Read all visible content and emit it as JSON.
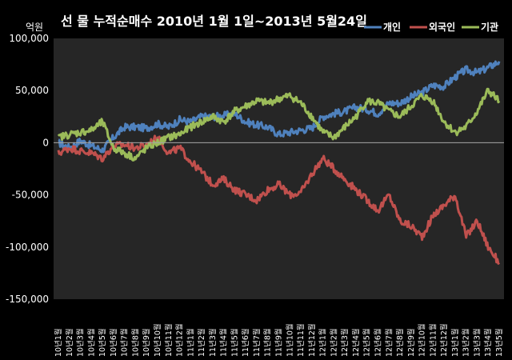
{
  "chart_data": {
    "type": "line",
    "title": "선  물  누적순매수  2010년 1월 1일~2013년 5월24일",
    "unit_label": "억원",
    "ylim": [
      -150000,
      100000
    ],
    "ytick_values": [
      -150000,
      -100000,
      -50000,
      0,
      50000,
      100000
    ],
    "ytick_labels": [
      "-150,000",
      "-100,000",
      "-50,000",
      "0",
      "50,000",
      "100,000"
    ],
    "legend_position": "top-right",
    "grid": false,
    "colors": {
      "plot_background": "#262626",
      "page_background": "#000000",
      "zero_line": "#a6a6a6",
      "individual": "#4f81bd",
      "foreign": "#c0504d",
      "institution": "#9bbb59"
    },
    "categories": [
      "10년1월",
      "10년2월",
      "10년3월",
      "10년4월",
      "10년5월",
      "10년6월",
      "10년7월",
      "10년8월",
      "10년9월",
      "10년10월",
      "10년11월",
      "10년12월",
      "11년1월",
      "11년2월",
      "11년3월",
      "11년4월",
      "11년5월",
      "11년6월",
      "11년7월",
      "11년8월",
      "11년9월",
      "11년10월",
      "11년11월",
      "11년12월",
      "12년1월",
      "12년2월",
      "12년3월",
      "12년4월",
      "12년5월",
      "12년6월",
      "12년7월",
      "12년8월",
      "12년9월",
      "12년10월",
      "12년11월",
      "12년12월",
      "13년1월",
      "13년2월",
      "13년3월",
      "13년4월",
      "13년5월"
    ],
    "series": [
      {
        "name": "개인",
        "color": "#4f81bd",
        "values": [
          0,
          -5000,
          2000,
          -3000,
          -7000,
          5000,
          15000,
          15000,
          14000,
          18000,
          15000,
          22000,
          20000,
          25000,
          25000,
          26000,
          28000,
          20000,
          17000,
          15000,
          8000,
          10000,
          12000,
          14000,
          25000,
          28000,
          30000,
          34000,
          32000,
          28000,
          38000,
          38000,
          44000,
          48000,
          55000,
          54000,
          63000,
          70000,
          67000,
          72000,
          78000
        ]
      },
      {
        "name": "외국인",
        "color": "#c0504d",
        "values": [
          -10000,
          -5000,
          -8000,
          -10000,
          -15000,
          -3000,
          -2000,
          -5000,
          -2000,
          5000,
          -10000,
          -5000,
          -18000,
          -28000,
          -40000,
          -35000,
          -45000,
          -50000,
          -55000,
          -45000,
          -40000,
          -50000,
          -48000,
          -30000,
          -15000,
          -25000,
          -35000,
          -45000,
          -55000,
          -65000,
          -50000,
          -75000,
          -80000,
          -90000,
          -70000,
          -60000,
          -50000,
          -90000,
          -75000,
          -100000,
          -115000
        ]
      },
      {
        "name": "기관",
        "color": "#9bbb59",
        "values": [
          5000,
          8000,
          10000,
          12000,
          20000,
          -5000,
          -10000,
          -15000,
          -5000,
          0,
          5000,
          8000,
          15000,
          20000,
          25000,
          20000,
          30000,
          35000,
          40000,
          38000,
          42000,
          45000,
          38000,
          25000,
          10000,
          5000,
          15000,
          25000,
          40000,
          38000,
          30000,
          25000,
          35000,
          45000,
          40000,
          20000,
          10000,
          15000,
          30000,
          50000,
          40000
        ]
      }
    ]
  }
}
